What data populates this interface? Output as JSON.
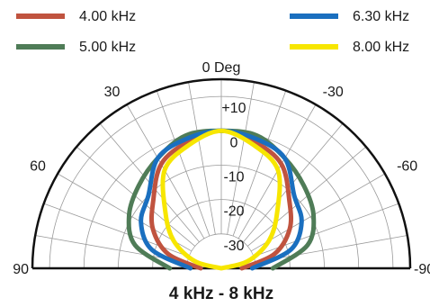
{
  "chart_data": {
    "type": "polar",
    "title": "4 kHz - 8 kHz",
    "angle_unit_label": "0 Deg",
    "angle_ticks": [
      {
        "angle": 0,
        "label": "0 Deg"
      },
      {
        "angle": -30,
        "label": "30"
      },
      {
        "angle": 30,
        "label": "-30"
      },
      {
        "angle": -60,
        "label": "60"
      },
      {
        "angle": 60,
        "label": "-60"
      },
      {
        "angle": -90,
        "label": "90"
      },
      {
        "angle": 90,
        "label": "-90"
      }
    ],
    "radial_ticks": [
      {
        "value": 10,
        "label": "+10"
      },
      {
        "value": 0,
        "label": "0"
      },
      {
        "value": -10,
        "label": "-10"
      },
      {
        "value": -20,
        "label": "-20"
      },
      {
        "value": -30,
        "label": "-30"
      }
    ],
    "rlim": [
      -40,
      15
    ],
    "angle_range": [
      -90,
      90
    ],
    "grid": true,
    "legend_position": "top",
    "angles": [
      -90,
      -75,
      -60,
      -45,
      -30,
      -15,
      0,
      15,
      30,
      45,
      60,
      75,
      90
    ],
    "series": [
      {
        "name": "4.00 kHz",
        "color": "#c0533f",
        "values": [
          -34,
          -24,
          -17,
          -12,
          -5,
          -2,
          0,
          -2,
          -5,
          -12,
          -17,
          -24,
          -34
        ]
      },
      {
        "name": "5.00 kHz",
        "color": "#4f7c57",
        "values": [
          -25,
          -14,
          -9,
          -6,
          -3,
          0,
          0,
          0,
          -3,
          -6,
          -9,
          -14,
          -25
        ]
      },
      {
        "name": "6.30 kHz",
        "color": "#1a6fbf",
        "values": [
          -31,
          -19,
          -13,
          -10,
          -3,
          -1,
          0,
          -1,
          -3,
          -10,
          -13,
          -19,
          -31
        ]
      },
      {
        "name": "8.00 kHz",
        "color": "#f7e600",
        "values": [
          -40,
          -32,
          -24,
          -17,
          -7,
          -3,
          0,
          -3,
          -7,
          -17,
          -24,
          -32,
          -40
        ]
      }
    ]
  }
}
